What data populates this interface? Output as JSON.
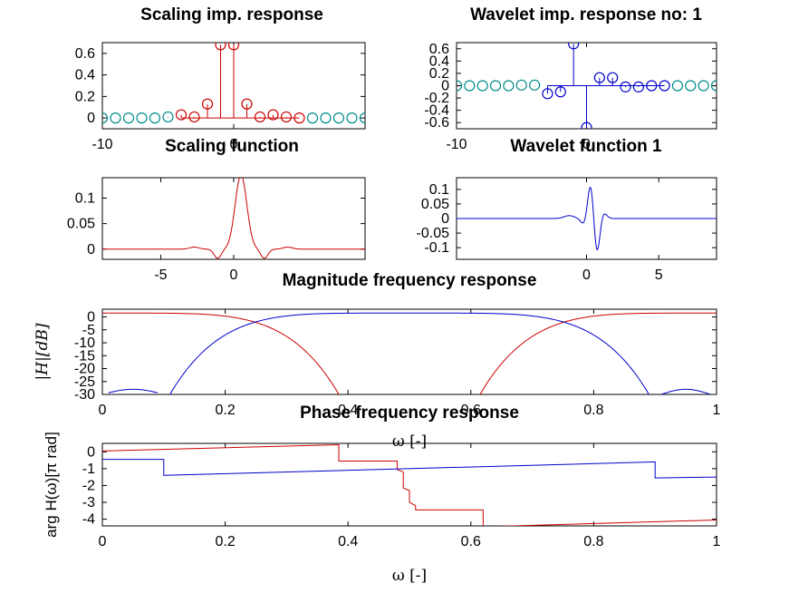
{
  "colors": {
    "scaling": "#cc0000",
    "wavelet": "#0000cc",
    "stem_outside": "#008b8b",
    "axes": "#000000"
  },
  "chart_data": [
    {
      "id": "scaling-imp",
      "type": "stem",
      "title": "Scaling imp. response",
      "xlim": [
        -10,
        10
      ],
      "ylim": [
        -0.1,
        0.7
      ],
      "xticks": [
        -10,
        0
      ],
      "xtick_labels": [
        "-10",
        "0"
      ],
      "yticks": [
        0,
        0.2,
        0.4,
        0.6
      ],
      "ytick_labels": [
        "0",
        "0.2",
        "0.4",
        "0.6"
      ],
      "support": [
        -4,
        5
      ],
      "x": [
        -10,
        -9,
        -8,
        -7,
        -6,
        -5,
        -4,
        -3,
        -2,
        -1,
        0,
        1,
        2,
        3,
        4,
        5,
        6,
        7,
        8,
        9,
        10
      ],
      "y": [
        0,
        0,
        0,
        0,
        0,
        0.01,
        0.03,
        0.01,
        0.13,
        0.68,
        0.68,
        0.13,
        0.01,
        0.03,
        0.01,
        0,
        0,
        0,
        0,
        0,
        0
      ]
    },
    {
      "id": "wavelet-imp",
      "type": "stem",
      "title": "Wavelet imp. response no: 1",
      "xlim": [
        -10,
        10
      ],
      "ylim": [
        -0.7,
        0.7
      ],
      "xticks": [
        -10,
        0
      ],
      "xtick_labels": [
        "-10",
        "0"
      ],
      "yticks": [
        0.6,
        0.4,
        0.2,
        0,
        -0.2,
        -0.4,
        -0.6
      ],
      "ytick_labels": [
        "0.6",
        "0.4",
        "0.2",
        "0",
        "-0.2",
        "-0.4",
        "-0.6"
      ],
      "support": [
        -3,
        6
      ],
      "x": [
        -10,
        -9,
        -8,
        -7,
        -6,
        -5,
        -4,
        -3,
        -2,
        -1,
        0,
        1,
        2,
        3,
        4,
        5,
        6,
        7,
        8,
        9,
        10
      ],
      "y": [
        0,
        0,
        0,
        0,
        0,
        0.01,
        0.01,
        -0.13,
        -0.1,
        0.68,
        -0.68,
        0.13,
        0.13,
        -0.02,
        -0.02,
        0,
        0,
        0,
        0,
        0,
        0
      ]
    },
    {
      "id": "scaling-fn",
      "type": "line",
      "title": "Scaling function",
      "xlim": [
        -9,
        9
      ],
      "ylim": [
        -0.02,
        0.14
      ],
      "xticks": [
        -5,
        0
      ],
      "xtick_labels": [
        "-5",
        "0"
      ],
      "yticks": [
        0.1,
        0.05,
        0
      ],
      "ytick_labels": [
        "0.1",
        "0.05",
        "0"
      ]
    },
    {
      "id": "wavelet-fn",
      "type": "line",
      "title": "Wavelet function 1",
      "xlim": [
        -9,
        9
      ],
      "ylim": [
        -0.14,
        0.14
      ],
      "xticks": [
        0,
        5
      ],
      "xtick_labels": [
        "0",
        "5"
      ],
      "yticks": [
        0.1,
        0.05,
        0,
        -0.05,
        -0.1
      ],
      "ytick_labels": [
        "0.1",
        "0.05",
        "0",
        "-0.05",
        "-0.1"
      ]
    },
    {
      "id": "magnitude",
      "type": "line",
      "title": "Magnitude frequency response",
      "ylabel": "|H|[dB]",
      "xlabel": "ω [-]",
      "xlim": [
        0,
        1
      ],
      "ylim": [
        -30,
        3
      ],
      "xticks": [
        0,
        0.2,
        0.4,
        0.6,
        0.8,
        1
      ],
      "xtick_labels": [
        "0",
        "0.2",
        "0.4",
        "0.6",
        "0.8",
        "1"
      ],
      "yticks": [
        0,
        -5,
        -10,
        -15,
        -20,
        -25,
        -30
      ],
      "ytick_labels": [
        "0",
        "-5",
        "-10",
        "-15",
        "-20",
        "-25",
        "-30"
      ]
    },
    {
      "id": "phase",
      "type": "line",
      "title": "Phase frequency response",
      "ylabel": "arg H(ω)[π rad]",
      "xlabel": "ω [-]",
      "xlim": [
        0,
        1
      ],
      "ylim": [
        -4.4,
        0.5
      ],
      "xticks": [
        0,
        0.2,
        0.4,
        0.6,
        0.8,
        1
      ],
      "xtick_labels": [
        "0",
        "0.2",
        "0.4",
        "0.6",
        "0.8",
        "1"
      ],
      "yticks": [
        0,
        -1,
        -2,
        -3,
        -4
      ],
      "ytick_labels": [
        "0",
        "-1",
        "-2",
        "-3",
        "-4"
      ],
      "series": [
        {
          "x": [
            0,
            0.385,
            0.385,
            0.48,
            0.48,
            0.49,
            0.49,
            0.5,
            0.5,
            0.51,
            0.51,
            0.62,
            0.62,
            1
          ],
          "y": [
            0.05,
            0.42,
            -0.55,
            -0.55,
            -1.05,
            -1.2,
            -2.15,
            -2.3,
            -3.0,
            -3.2,
            -3.45,
            -3.45,
            -4.45,
            -4.05
          ]
        },
        {
          "x": [
            0,
            0.1,
            0.1,
            0.9,
            0.9,
            1
          ],
          "y": [
            -0.45,
            -0.45,
            -1.4,
            -0.6,
            -1.55,
            -1.5
          ]
        }
      ]
    }
  ]
}
